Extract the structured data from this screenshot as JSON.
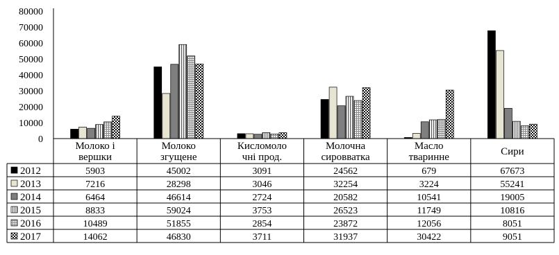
{
  "chart_data": {
    "type": "bar",
    "title": "",
    "xlabel": "",
    "ylabel": "",
    "ylim": [
      0,
      80000
    ],
    "yticks": [
      0,
      10000,
      20000,
      30000,
      40000,
      50000,
      60000,
      70000,
      80000
    ],
    "grid": false,
    "legend_position": "left, inside data table",
    "categories": [
      [
        "Молоко і",
        "вершки"
      ],
      [
        "Молоко",
        "згущене"
      ],
      [
        "Кисломоло",
        "чні прод."
      ],
      [
        "Молочна",
        "сировватка"
      ],
      [
        "Масло",
        "тваринне"
      ],
      [
        "Сири"
      ]
    ],
    "series": [
      {
        "name": "2012",
        "pattern": "solid-black",
        "values": [
          5903,
          45002,
          3091,
          24562,
          679,
          67673
        ]
      },
      {
        "name": "2013",
        "pattern": "light-beige",
        "values": [
          7216,
          28298,
          3046,
          32254,
          3224,
          55241
        ]
      },
      {
        "name": "2014",
        "pattern": "gray",
        "values": [
          6464,
          46614,
          2724,
          20582,
          10541,
          19005
        ]
      },
      {
        "name": "2015",
        "pattern": "white-vertical-lines",
        "values": [
          8833,
          59024,
          3753,
          26523,
          11749,
          10816
        ]
      },
      {
        "name": "2016",
        "pattern": "light-grid",
        "values": [
          10489,
          51855,
          2854,
          23872,
          12056,
          8051
        ]
      },
      {
        "name": "2017",
        "pattern": "checker",
        "values": [
          14062,
          46830,
          3711,
          31937,
          30422,
          9051
        ]
      }
    ]
  }
}
